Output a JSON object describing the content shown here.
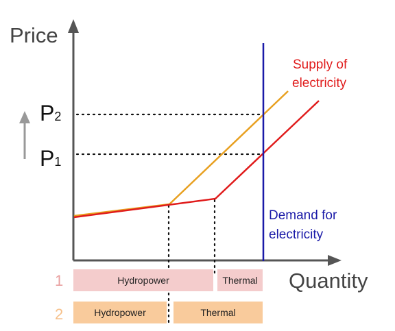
{
  "diagram": {
    "y_axis_label": "Price",
    "x_axis_label": "Quantity",
    "price_levels": [
      {
        "base": "P",
        "sub": "2"
      },
      {
        "base": "P",
        "sub": "1"
      }
    ],
    "supply_label": [
      "Supply of",
      "electricity"
    ],
    "demand_label": [
      "Demand for",
      "electricity"
    ],
    "colors": {
      "axis": "#555555",
      "supply_1": "#e01b1b",
      "supply_2": "#e8a020",
      "demand": "#1a1aa8",
      "scenario_1_bar": "#f4cccc",
      "scenario_2_bar": "#f9cb9c",
      "scenario_1_number": "#e9a0a0",
      "scenario_2_number": "#f6c08a",
      "up_arrow": "#999999"
    },
    "scenarios": [
      {
        "number": "1",
        "segments": [
          "Hydropower",
          "Thermal"
        ]
      },
      {
        "number": "2",
        "segments": [
          "Hydropower",
          "Thermal"
        ]
      }
    ]
  }
}
